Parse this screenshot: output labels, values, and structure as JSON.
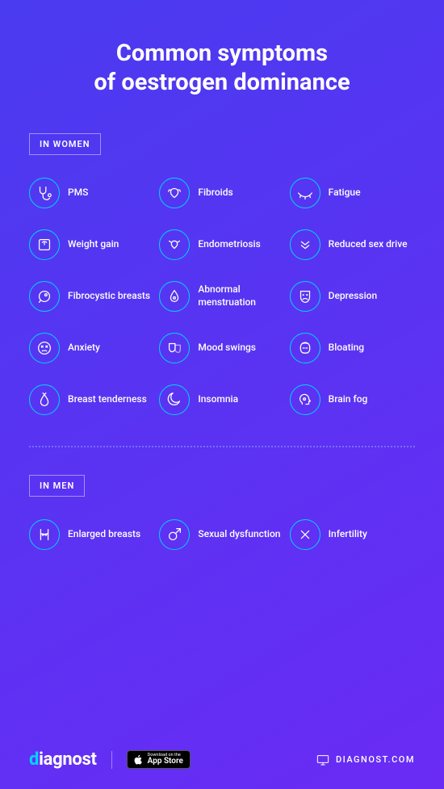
{
  "colors": {
    "bg_start": "#4a3bf0",
    "bg_end": "#6a2bf5",
    "icon_border": "#00d4ff",
    "icon_stroke": "#ffffff",
    "text": "#ffffff",
    "divider": "#7a6cf8",
    "brand_accent": "#00d4ff",
    "appstore_bg": "#000000"
  },
  "title_line1": "Common symptoms",
  "title_line2": "of oestrogen dominance",
  "sections": [
    {
      "header": "IN WOMEN",
      "items": [
        {
          "icon": "stethoscope",
          "label": "PMS"
        },
        {
          "icon": "uterus",
          "label": "Fibroids"
        },
        {
          "icon": "eye-closed",
          "label": "Fatigue"
        },
        {
          "icon": "scale",
          "label": "Weight gain"
        },
        {
          "icon": "uterus2",
          "label": "Endometriosis"
        },
        {
          "icon": "chevrons-down",
          "label": "Reduced sex drive"
        },
        {
          "icon": "breast",
          "label": "Fibrocystic breasts"
        },
        {
          "icon": "blood-drop",
          "label": "Abnormal menstruation"
        },
        {
          "icon": "sad-mask",
          "label": "Depression"
        },
        {
          "icon": "dizzy-face",
          "label": "Anxiety"
        },
        {
          "icon": "masks",
          "label": "Mood swings"
        },
        {
          "icon": "bloat",
          "label": "Bloating"
        },
        {
          "icon": "tender",
          "label": "Breast tenderness"
        },
        {
          "icon": "moon",
          "label": "Insomnia"
        },
        {
          "icon": "head-fog",
          "label": "Brain fog"
        }
      ]
    },
    {
      "header": "IN MEN",
      "items": [
        {
          "icon": "male-chest",
          "label": "Enlarged breasts"
        },
        {
          "icon": "male-arrow",
          "label": "Sexual dysfunction"
        },
        {
          "icon": "x",
          "label": "Infertility"
        }
      ]
    }
  ],
  "footer": {
    "brand": "diagnost",
    "appstore_small": "Download on the",
    "appstore_big": "App Store",
    "site": "DIAGNOST.COM"
  }
}
